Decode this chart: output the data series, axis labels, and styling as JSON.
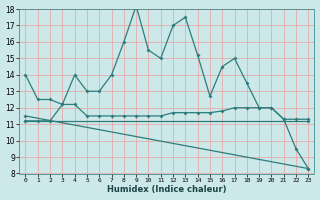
{
  "xlabel": "Humidex (Indice chaleur)",
  "ylabel": "",
  "xlim": [
    -0.5,
    23.5
  ],
  "ylim": [
    8,
    18
  ],
  "yticks": [
    8,
    9,
    10,
    11,
    12,
    13,
    14,
    15,
    16,
    17,
    18
  ],
  "xticks": [
    0,
    1,
    2,
    3,
    4,
    5,
    6,
    7,
    8,
    9,
    10,
    11,
    12,
    13,
    14,
    15,
    16,
    17,
    18,
    19,
    20,
    21,
    22,
    23
  ],
  "bg_color": "#cce8e8",
  "grid_color": "#e8a0a0",
  "line_color": "#2d7d7d",
  "line1_x": [
    0,
    1,
    2,
    3,
    4,
    5,
    6,
    7,
    8,
    9,
    10,
    11,
    12,
    13,
    14,
    15,
    16,
    17,
    18,
    19,
    20,
    21,
    22,
    23
  ],
  "line1_y": [
    14,
    12.5,
    12.5,
    12.2,
    14.0,
    13.0,
    13.0,
    14.0,
    16.0,
    18.2,
    15.5,
    15.0,
    17.0,
    17.5,
    15.2,
    12.7,
    14.5,
    15.0,
    13.5,
    12.0,
    12.0,
    11.3,
    9.5,
    8.3
  ],
  "line2_x": [
    0,
    1,
    2,
    3,
    4,
    5,
    6,
    7,
    8,
    9,
    10,
    11,
    12,
    13,
    14,
    15,
    16,
    17,
    18,
    19,
    20,
    21,
    22,
    23
  ],
  "line2_y": [
    11.2,
    11.2,
    11.2,
    12.2,
    12.2,
    11.5,
    11.5,
    11.5,
    11.5,
    11.5,
    11.5,
    11.5,
    11.7,
    11.7,
    11.7,
    11.7,
    11.8,
    12.0,
    12.0,
    12.0,
    12.0,
    11.3,
    11.3,
    11.3
  ],
  "line3_x": [
    0,
    23
  ],
  "line3_y": [
    11.2,
    11.2
  ],
  "line4_x": [
    0,
    23
  ],
  "line4_y": [
    11.5,
    8.3
  ]
}
